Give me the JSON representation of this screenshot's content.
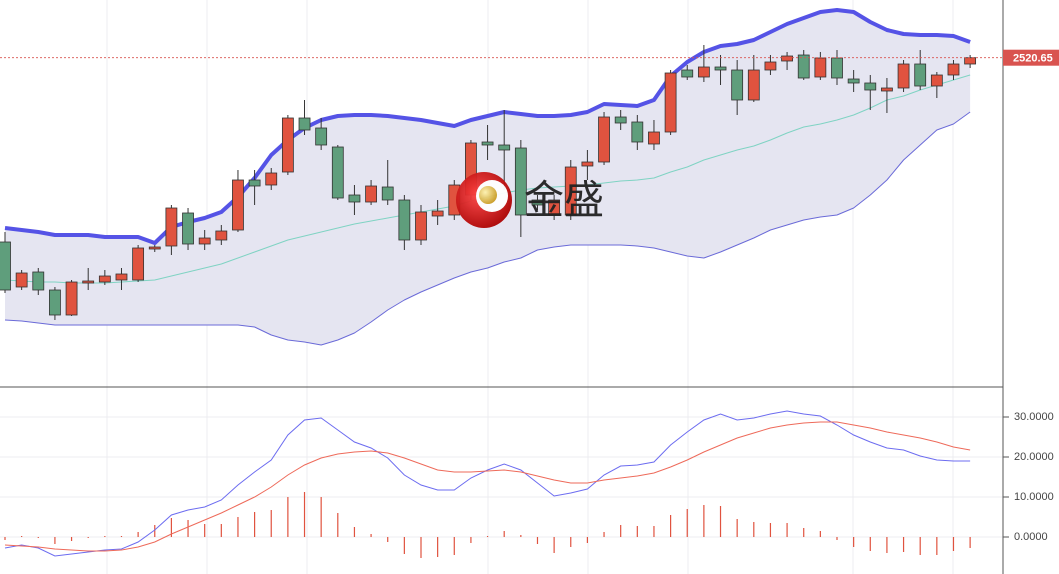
{
  "chart_data": [
    {
      "type": "candlestick",
      "open": [
        2428.5,
        2406,
        2413.5,
        2404.5,
        2392,
        2408,
        2408.5,
        2409.5,
        2409.5,
        2425,
        2426.5,
        2443,
        2427.5,
        2429.5,
        2434.5,
        2459.5,
        2457,
        2463.5,
        2490.5,
        2485.5,
        2476,
        2452,
        2448.5,
        2456,
        2449.5,
        2429.5,
        2441.5,
        2442,
        2452,
        2478.5,
        2477,
        2475.5,
        2449.5,
        2442,
        2442,
        2466.5,
        2468.5,
        2491,
        2488.5,
        2477.5,
        2483.5,
        2514.5,
        2511,
        2516,
        2514.5,
        2499.5,
        2514.5,
        2519,
        2522,
        2511,
        2520.5,
        2510,
        2508,
        2504,
        2505.5,
        2517.5,
        2506.5,
        2512,
        2517.5
      ],
      "high": [
        2433.5,
        2414.5,
        2415.5,
        2406,
        2409.5,
        2415.5,
        2414.5,
        2415.5,
        2427,
        2427,
        2447,
        2445.5,
        2434.5,
        2437,
        2464.5,
        2464.5,
        2465.5,
        2492,
        2499.5,
        2490.5,
        2477,
        2457,
        2459.5,
        2469.5,
        2452,
        2447,
        2449.5,
        2459.5,
        2479.5,
        2487,
        2494.5,
        2479.5,
        2452,
        2452,
        2469.5,
        2474.5,
        2493.5,
        2494.5,
        2492,
        2489.5,
        2514.5,
        2517,
        2527,
        2522,
        2519.5,
        2522,
        2522,
        2523.5,
        2524.5,
        2523.5,
        2524.5,
        2514.5,
        2512,
        2510.5,
        2519.5,
        2524.5,
        2513.5,
        2519.5,
        2522
      ],
      "low": [
        2403,
        2404.5,
        2402,
        2389.5,
        2391.5,
        2404.5,
        2407,
        2404.5,
        2408.5,
        2423.5,
        2422,
        2424.5,
        2424.5,
        2427,
        2433.5,
        2447,
        2454.5,
        2462,
        2482,
        2474.5,
        2449.5,
        2442,
        2447,
        2447,
        2424.5,
        2427,
        2437,
        2439.5,
        2449.5,
        2469.5,
        2454.5,
        2431,
        2444.5,
        2439.5,
        2439.5,
        2459.5,
        2467,
        2484.5,
        2474.5,
        2474.5,
        2482,
        2509.5,
        2508.5,
        2507,
        2492,
        2498.5,
        2512,
        2514.5,
        2509.5,
        2509.5,
        2507,
        2503.5,
        2494.5,
        2493,
        2503.5,
        2504.5,
        2500.5,
        2509.5,
        2515.5
      ],
      "close": [
        2404.5,
        2413,
        2404.5,
        2392,
        2408.5,
        2409,
        2411.5,
        2412.5,
        2425.5,
        2426,
        2445.5,
        2427.5,
        2430.5,
        2434,
        2459.5,
        2456.5,
        2463,
        2490.5,
        2484.5,
        2477,
        2450.5,
        2448.5,
        2456.5,
        2449.5,
        2429.5,
        2443.5,
        2444,
        2457,
        2478,
        2477,
        2474.5,
        2442,
        2447,
        2449.5,
        2466,
        2468.5,
        2491,
        2488,
        2478.5,
        2483.5,
        2513,
        2511,
        2516,
        2514.5,
        2499.5,
        2514.5,
        2518.5,
        2521.5,
        2510.5,
        2520.5,
        2510.5,
        2508,
        2504.5,
        2505.5,
        2517.5,
        2506.5,
        2512,
        2517.5,
        2520.65
      ],
      "up_color": "#e0533f",
      "down_color": "#5f9e7c",
      "bands": [
        {
          "color": "#5553e6",
          "values": [
            2435.5,
            2434.5,
            2433.5,
            2432,
            2432,
            2432,
            2431,
            2431,
            2431,
            2428,
            2436,
            2438.5,
            2440.5,
            2443.5,
            2451,
            2460.5,
            2472,
            2479.5,
            2485.5,
            2489.5,
            2491.5,
            2492,
            2492,
            2491.5,
            2490.5,
            2489.5,
            2488,
            2486.5,
            2489.5,
            2491.5,
            2493.5,
            2492.5,
            2491.5,
            2491.5,
            2492,
            2493.5,
            2497.5,
            2497,
            2496.5,
            2499.5,
            2511.5,
            2518.5,
            2523.5,
            2526.5,
            2527.5,
            2529.5,
            2533.5,
            2537.5,
            2540.5,
            2543.5,
            2544.5,
            2543.5,
            2538.5,
            2534.5,
            2532.5,
            2532,
            2532,
            2531.5,
            2528.5
          ]
        },
        {
          "color": "#7fd3c3",
          "values": [
            2409.5,
            2409,
            2408.5,
            2408.5,
            2408,
            2408,
            2408,
            2408.5,
            2409,
            2409.5,
            2411.5,
            2413.5,
            2415.5,
            2417.5,
            2420.5,
            2423.5,
            2426.5,
            2429.5,
            2431.5,
            2433.5,
            2435.5,
            2437.5,
            2439,
            2440.5,
            2442,
            2443.5,
            2445,
            2446.5,
            2449,
            2451,
            2453,
            2454.5,
            2455.5,
            2456,
            2456.5,
            2457,
            2458,
            2459,
            2459.5,
            2460.5,
            2463.5,
            2466,
            2469.5,
            2472,
            2474.5,
            2476.5,
            2479.5,
            2483,
            2486,
            2487.5,
            2489.5,
            2492,
            2495.5,
            2499.5,
            2501.5,
            2504.5,
            2507,
            2509.5,
            2512
          ]
        },
        {
          "color": "#6a6ad8",
          "values": [
            2389.5,
            2389,
            2388,
            2387,
            2387,
            2387,
            2387,
            2387,
            2387,
            2387,
            2387,
            2387,
            2387,
            2387,
            2387,
            2386,
            2382,
            2379.5,
            2378.5,
            2377,
            2379.5,
            2383,
            2388.5,
            2394.5,
            2399.5,
            2403.5,
            2407,
            2410.5,
            2413.5,
            2415.5,
            2418.5,
            2420.5,
            2424.5,
            2426,
            2427,
            2427,
            2427,
            2427,
            2426.5,
            2425.5,
            2423.5,
            2421.5,
            2420.5,
            2423.5,
            2427,
            2430.5,
            2434.5,
            2437,
            2439.5,
            2441,
            2442,
            2445.5,
            2452,
            2459.5,
            2469.5,
            2477,
            2484.5,
            2487.5,
            2493.5
          ]
        }
      ],
      "band_fill": "#e5e5f1",
      "ylim": [
        2356,
        2549.5
      ],
      "last_price": 2520.65,
      "last_price_color": "#d9534f",
      "annotation": "金盛"
    },
    {
      "type": "macd",
      "series": [
        {
          "type": "bar",
          "color": "#e0533f",
          "values": [
            -0.75,
            0.25,
            -0.25,
            -1.75,
            -1,
            -0.25,
            0.25,
            0.25,
            1.25,
            3,
            4.75,
            4.25,
            3.25,
            3.25,
            5,
            6.25,
            6.75,
            10,
            11.25,
            10,
            6,
            2.5,
            0.75,
            -1.25,
            -4.25,
            -5.25,
            -5,
            -4.5,
            -1.5,
            0.25,
            1.5,
            0.5,
            -1.75,
            -4,
            -2.5,
            -1.5,
            1.25,
            3,
            2.75,
            2.75,
            5.5,
            7,
            8,
            7.75,
            4.5,
            3.75,
            3.5,
            3.5,
            2.25,
            1.5,
            -0.75,
            -2.5,
            -3.5,
            -4,
            -3.75,
            -4.5,
            -4.5,
            -3.5,
            -2.75
          ]
        },
        {
          "type": "line",
          "color": "#6c6cf0",
          "values": [
            -2.75,
            -2,
            -2.75,
            -4.75,
            -4.25,
            -3.75,
            -3.25,
            -3,
            -1.25,
            1.75,
            5.5,
            6.75,
            7.5,
            9.25,
            13,
            16.25,
            19.25,
            25.5,
            29.25,
            29.75,
            26.75,
            23.75,
            22.25,
            19.75,
            15.5,
            13,
            11.75,
            11.75,
            14.75,
            16.75,
            18.25,
            16.75,
            13.5,
            10.25,
            11,
            12,
            15.5,
            17.75,
            18,
            18.75,
            23,
            26.25,
            29.25,
            30.75,
            29.25,
            29.75,
            30.75,
            31.5,
            30.75,
            30.25,
            28,
            25.5,
            23.75,
            22.25,
            21.75,
            20.25,
            19.25,
            19,
            19
          ]
        },
        {
          "type": "line",
          "color": "#ee6a5a",
          "values": [
            -2,
            -2.25,
            -2.5,
            -3,
            -3.25,
            -3.5,
            -3.5,
            -3.25,
            -2.5,
            -1.25,
            0.75,
            2.5,
            4.25,
            6,
            8,
            10,
            12.5,
            15.5,
            18,
            19.75,
            20.75,
            21.25,
            21.5,
            21,
            19.75,
            18.25,
            16.75,
            16.25,
            16.25,
            16.5,
            16.75,
            16.25,
            15.25,
            14.25,
            13.5,
            13.5,
            14.25,
            14.75,
            15.25,
            16,
            17.5,
            19.25,
            21.25,
            23,
            24.75,
            26,
            27.25,
            28,
            28.5,
            28.75,
            28.75,
            28,
            27.25,
            26.25,
            25.5,
            24.75,
            23.75,
            22.5,
            21.75
          ]
        }
      ],
      "ylim": [
        -9.25,
        37.25
      ],
      "yticks": [
        {
          "value": 0,
          "label": "0.0000"
        },
        {
          "value": 10,
          "label": "10.0000"
        },
        {
          "value": 20,
          "label": "20.0000"
        },
        {
          "value": 30,
          "label": "30.0000"
        }
      ],
      "grid": true
    }
  ]
}
